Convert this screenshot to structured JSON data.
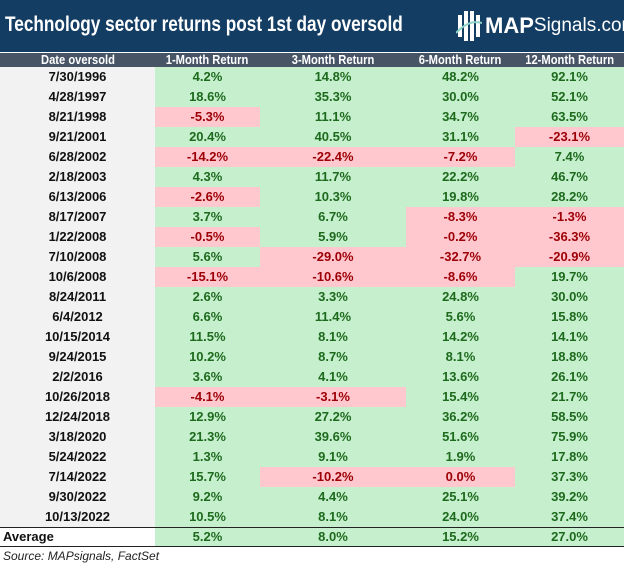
{
  "header": {
    "title": "Technology sector returns post 1st day oversold",
    "logo_text_bold": "MAP",
    "logo_text_regular": "Signals.com"
  },
  "chart_data": {
    "type": "table",
    "title": "Technology sector returns post 1st day oversold",
    "columns": [
      "Date oversold",
      "1-Month Return",
      "3-Month Return",
      "6-Month Return",
      "12-Month Return"
    ],
    "rows": [
      [
        "7/30/1996",
        "4.2%",
        "14.8%",
        "48.2%",
        "92.1%"
      ],
      [
        "4/28/1997",
        "18.6%",
        "35.3%",
        "30.0%",
        "52.1%"
      ],
      [
        "8/21/1998",
        "-5.3%",
        "11.1%",
        "34.7%",
        "63.5%"
      ],
      [
        "9/21/2001",
        "20.4%",
        "40.5%",
        "31.1%",
        "-23.1%"
      ],
      [
        "6/28/2002",
        "-14.2%",
        "-22.4%",
        "-7.2%",
        "7.4%"
      ],
      [
        "2/18/2003",
        "4.3%",
        "11.7%",
        "22.2%",
        "46.7%"
      ],
      [
        "6/13/2006",
        "-2.6%",
        "10.3%",
        "19.8%",
        "28.2%"
      ],
      [
        "8/17/2007",
        "3.7%",
        "6.7%",
        "-8.3%",
        "-1.3%"
      ],
      [
        "1/22/2008",
        "-0.5%",
        "5.9%",
        "-0.2%",
        "-36.3%"
      ],
      [
        "7/10/2008",
        "5.6%",
        "-29.0%",
        "-32.7%",
        "-20.9%"
      ],
      [
        "10/6/2008",
        "-15.1%",
        "-10.6%",
        "-8.6%",
        "19.7%"
      ],
      [
        "8/24/2011",
        "2.6%",
        "3.3%",
        "24.8%",
        "30.0%"
      ],
      [
        "6/4/2012",
        "6.6%",
        "11.4%",
        "5.6%",
        "15.8%"
      ],
      [
        "10/15/2014",
        "11.5%",
        "8.1%",
        "14.2%",
        "14.1%"
      ],
      [
        "9/24/2015",
        "10.2%",
        "8.7%",
        "8.1%",
        "18.8%"
      ],
      [
        "2/2/2016",
        "3.6%",
        "4.1%",
        "13.6%",
        "26.1%"
      ],
      [
        "10/26/2018",
        "-4.1%",
        "-3.1%",
        "15.4%",
        "21.7%"
      ],
      [
        "12/24/2018",
        "12.9%",
        "27.2%",
        "36.2%",
        "58.5%"
      ],
      [
        "3/18/2020",
        "21.3%",
        "39.6%",
        "51.6%",
        "75.9%"
      ],
      [
        "5/24/2022",
        "1.3%",
        "9.1%",
        "1.9%",
        "17.8%"
      ],
      [
        "7/14/2022",
        "15.7%",
        "-10.2%",
        "0.0%",
        "37.3%"
      ],
      [
        "9/30/2022",
        "9.2%",
        "4.4%",
        "25.1%",
        "39.2%"
      ],
      [
        "10/13/2022",
        "10.5%",
        "8.1%",
        "24.0%",
        "37.4%"
      ]
    ],
    "average": [
      "Average",
      "5.2%",
      "8.0%",
      "15.2%",
      "27.0%"
    ],
    "colors": {
      "positive_bg": "#c6efce",
      "positive_text": "#1d6a1d",
      "negative_bg": "#ffc7ce",
      "negative_text": "#9c0006",
      "title_bg": "#133d63",
      "header_bg": "#475466"
    }
  },
  "footer": {
    "source": "Source: MAPsignals, FactSet"
  }
}
